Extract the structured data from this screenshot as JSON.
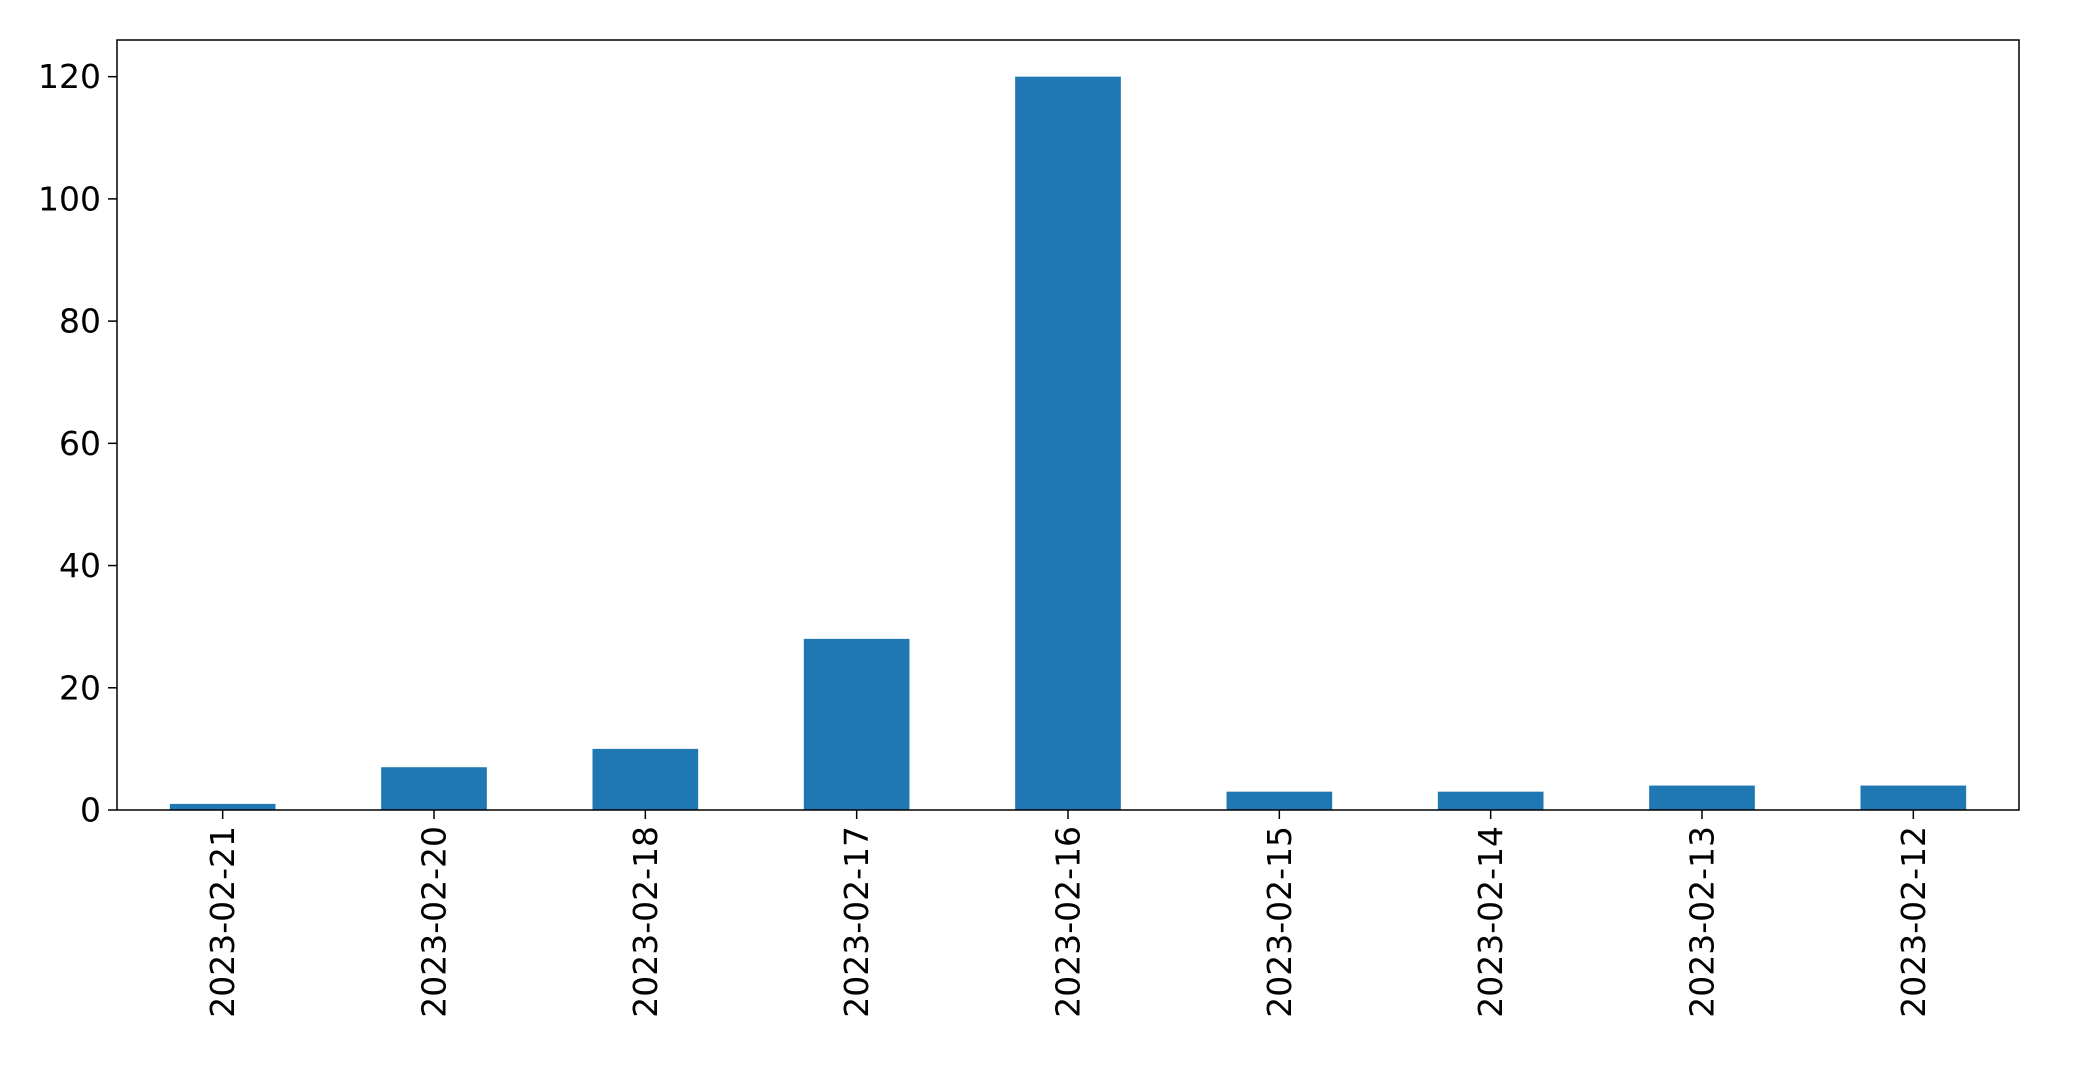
{
  "chart_data": {
    "type": "bar",
    "title": "",
    "xlabel": "",
    "ylabel": "",
    "categories": [
      "2023-02-21",
      "2023-02-20",
      "2023-02-18",
      "2023-02-17",
      "2023-02-16",
      "2023-02-15",
      "2023-02-14",
      "2023-02-13",
      "2023-02-12"
    ],
    "values": [
      1,
      7,
      10,
      28,
      120,
      3,
      3,
      4,
      4
    ],
    "ylim": [
      0,
      126
    ],
    "yticks": [
      0,
      20,
      40,
      60,
      80,
      100,
      120
    ],
    "grid": false,
    "legend": "none",
    "bar_color": "#1f77b4"
  }
}
